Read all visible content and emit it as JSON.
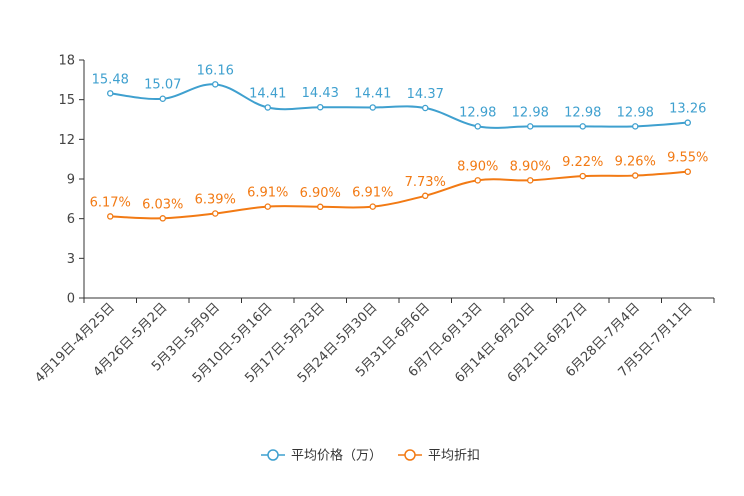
{
  "chart_data": {
    "type": "line",
    "title": "",
    "xlabel": "",
    "ylabel": "",
    "ylim": [
      0,
      18
    ],
    "yticks": [
      0,
      3,
      6,
      9,
      12,
      15,
      18
    ],
    "categories": [
      "4月19日-4月25日",
      "4月26日-5月2日",
      "5月3日-5月9日",
      "5月10日-5月16日",
      "5月17日-5月23日",
      "5月24日-5月30日",
      "5月31日-6月6日",
      "6月7日-6月13日",
      "6月14日-6月20日",
      "6月21日-6月27日",
      "6月28日-7月4日",
      "7月5日-7月11日"
    ],
    "series": [
      {
        "name": "平均价格（万）",
        "color": "#3fa0cf",
        "values": [
          15.48,
          15.07,
          16.16,
          14.41,
          14.43,
          14.41,
          14.37,
          12.98,
          12.98,
          12.98,
          12.98,
          13.26
        ],
        "labels": [
          "15.48",
          "15.07",
          "16.16",
          "14.41",
          "14.43",
          "14.41",
          "14.37",
          "12.98",
          "12.98",
          "12.98",
          "12.98",
          "13.26"
        ]
      },
      {
        "name": "平均折扣",
        "color": "#f27a14",
        "values": [
          6.17,
          6.03,
          6.39,
          6.91,
          6.9,
          6.91,
          7.73,
          8.9,
          8.9,
          9.22,
          9.26,
          9.55
        ],
        "labels": [
          "6.17%",
          "6.03%",
          "6.39%",
          "6.91%",
          "6.90%",
          "6.91%",
          "7.73%",
          "8.90%",
          "8.90%",
          "9.22%",
          "9.26%",
          "9.55%"
        ]
      }
    ],
    "legend_position": "bottom-center",
    "grid": false
  }
}
